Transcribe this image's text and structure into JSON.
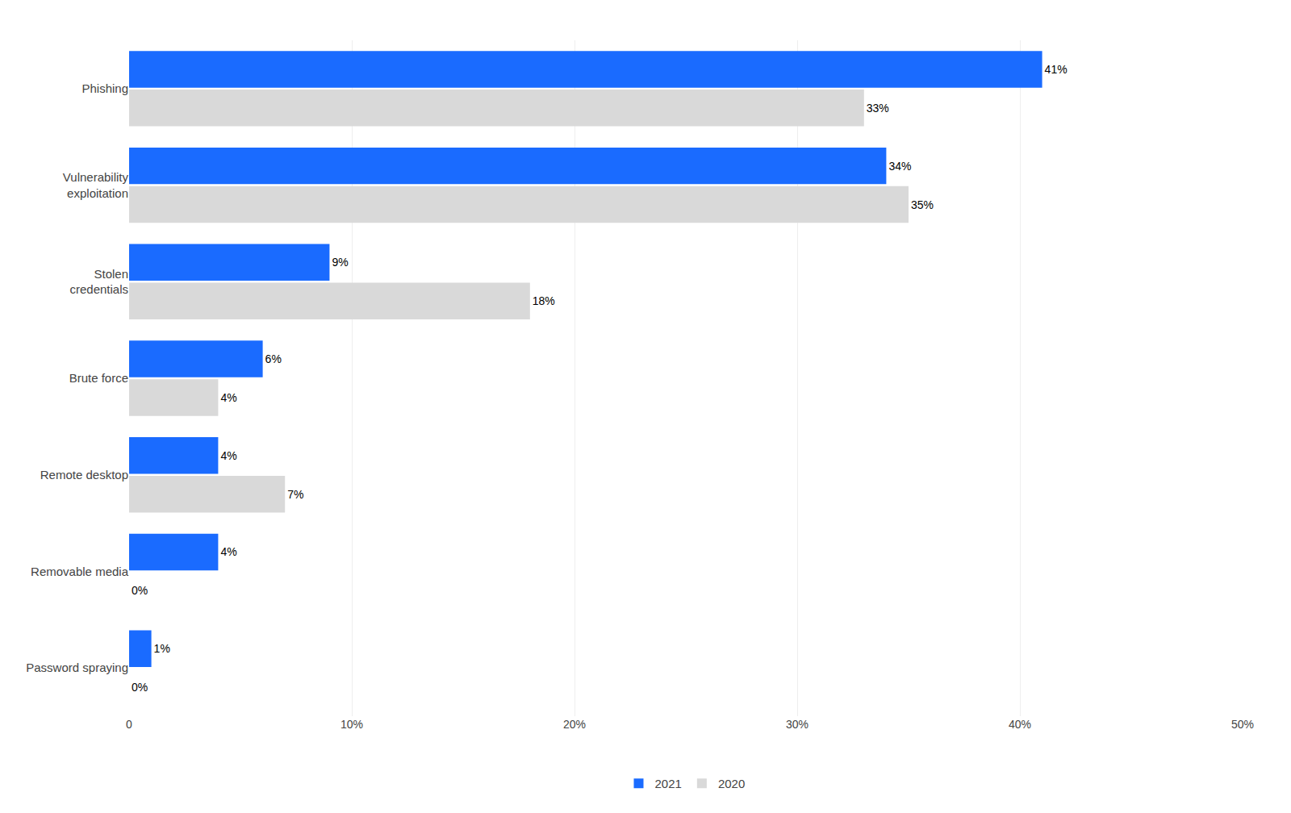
{
  "chart_data": {
    "type": "bar",
    "orientation": "horizontal",
    "categories": [
      "Phishing",
      "Vulnerability\nexploitation",
      "Stolen\ncredentials",
      "Brute force",
      "Remote desktop",
      "Removable media",
      "Password spraying"
    ],
    "series": [
      {
        "name": "2021",
        "color": "#1a6bff",
        "values": [
          41,
          34,
          9,
          6,
          4,
          4,
          1
        ],
        "value_labels": [
          "41%",
          "34%",
          "9%",
          "6%",
          "4%",
          "4%",
          "1%"
        ]
      },
      {
        "name": "2020",
        "color": "#d9d9d9",
        "values": [
          33,
          35,
          18,
          4,
          7,
          0,
          0
        ],
        "value_labels": [
          "33%",
          "35%",
          "18%",
          "4%",
          "7%",
          "0%",
          "0%"
        ]
      }
    ],
    "xlim": [
      0,
      50
    ],
    "xticks": [
      0,
      {
        "value": 10,
        "label": "10%"
      },
      {
        "value": 20,
        "label": "20%"
      },
      {
        "value": 30,
        "label": "30%"
      },
      {
        "value": 40,
        "label": "40%"
      },
      {
        "value": 50,
        "label": "50%"
      }
    ],
    "grid": true,
    "legend": "bottom",
    "data_labels": true
  }
}
